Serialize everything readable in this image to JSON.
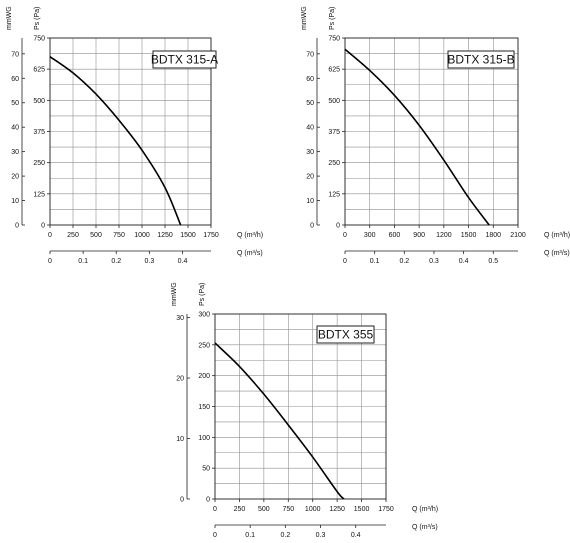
{
  "chart_data": [
    {
      "type": "line",
      "title": "BDTX 315-A",
      "ylabel": "Ps (Pa)",
      "ylabel2": "mmWG",
      "xlabel": "Q (m³/h)",
      "xlabel2": "Q (m³/s)",
      "xlim": [
        0,
        1750
      ],
      "ylim": [
        0,
        750
      ],
      "x_ticks": [
        "0",
        "250",
        "500",
        "750",
        "1000",
        "1250",
        "1500",
        "1750"
      ],
      "y_ticks": [
        "0",
        "125",
        "250",
        "375",
        "500",
        "625",
        "750"
      ],
      "x2_ticks": [
        "0",
        "0.1",
        "0.2",
        "0.3",
        "0.4"
      ],
      "y2_ticks": [
        "0",
        "10",
        "20",
        "30",
        "40",
        "50",
        "60",
        "70"
      ],
      "grid": true,
      "series": [
        {
          "x": [
            0,
            250,
            500,
            750,
            1000,
            1250,
            1420
          ],
          "y": [
            675,
            610,
            525,
            420,
            300,
            150,
            0
          ]
        }
      ]
    },
    {
      "type": "line",
      "title": "BDTX 315-B",
      "ylabel": "Ps (Pa)",
      "ylabel2": "mmWG",
      "xlabel": "Q (m³/h)",
      "xlabel2": "Q (m³/s)",
      "xlim": [
        0,
        2100
      ],
      "ylim": [
        0,
        750
      ],
      "x_ticks": [
        "0",
        "300",
        "600",
        "900",
        "1200",
        "1500",
        "1800",
        "2100"
      ],
      "y_ticks": [
        "0",
        "125",
        "250",
        "375",
        "500",
        "625",
        "750"
      ],
      "x2_ticks": [
        "0",
        "0.1",
        "0.2",
        "0.3",
        "0.4",
        "0.5"
      ],
      "y2_ticks": [
        "0",
        "10",
        "20",
        "30",
        "40",
        "50",
        "60",
        "70"
      ],
      "grid": true,
      "series": [
        {
          "x": [
            0,
            300,
            600,
            900,
            1200,
            1500,
            1750
          ],
          "y": [
            705,
            620,
            520,
            400,
            260,
            110,
            0
          ]
        }
      ]
    },
    {
      "type": "line",
      "title": "BDTX 355",
      "ylabel": "Ps (Pa)",
      "ylabel2": "mmWG",
      "xlabel": "Q (m³/h)",
      "xlabel2": "Q (m³/s)",
      "xlim": [
        0,
        1750
      ],
      "ylim": [
        0,
        300
      ],
      "x_ticks": [
        "0",
        "250",
        "500",
        "750",
        "1000",
        "1250",
        "1500",
        "1750"
      ],
      "y_ticks": [
        "0",
        "50",
        "100",
        "150",
        "200",
        "250",
        "300"
      ],
      "x2_ticks": [
        "0",
        "0.1",
        "0.2",
        "0.3",
        "0.4"
      ],
      "y2_ticks": [
        "0",
        "10",
        "20",
        "30"
      ],
      "grid": true,
      "series": [
        {
          "x": [
            0,
            250,
            500,
            750,
            1000,
            1250,
            1320
          ],
          "y": [
            253,
            215,
            170,
            120,
            68,
            12,
            0
          ]
        }
      ]
    }
  ]
}
